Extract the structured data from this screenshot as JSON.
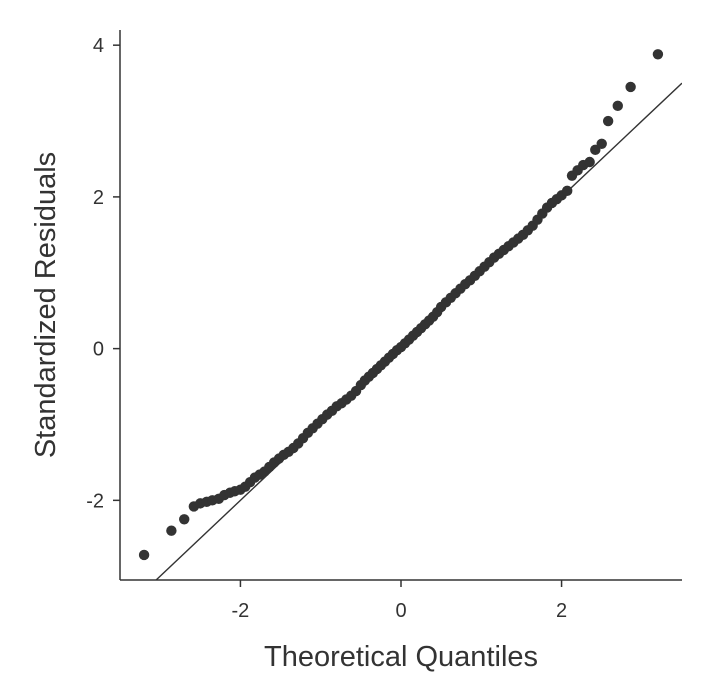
{
  "chart_data": {
    "type": "scatter",
    "title": "",
    "xlabel": "Theoretical Quantiles",
    "ylabel": "Standardized Residuals",
    "xlim": [
      -3.5,
      3.5
    ],
    "ylim": [
      -3.05,
      4.2
    ],
    "xticks": [
      -2,
      0,
      2
    ],
    "xtick_labels": [
      "-2",
      "0",
      "2"
    ],
    "yticks": [
      -2,
      0,
      2,
      4
    ],
    "ytick_labels": [
      "-2",
      "0",
      "2",
      "4"
    ],
    "grid": false,
    "legend": "none",
    "reference_line": {
      "slope": 1.0,
      "intercept": 0.0
    },
    "colors": {
      "points": "#333333",
      "line": "#333333",
      "axes": "#333333"
    },
    "series": [
      {
        "x": [
          -3.2,
          -2.86,
          -2.7,
          -2.58,
          -2.5,
          -2.42,
          -2.35,
          -2.27,
          -2.2,
          -2.13,
          -2.07,
          -2.0,
          -1.94,
          -1.88,
          -1.82,
          -1.76,
          -1.7,
          -1.64,
          -1.58,
          -1.52,
          -1.46,
          -1.4,
          -1.34,
          -1.28,
          -1.22,
          -1.16,
          -1.1,
          -1.04,
          -0.98,
          -0.92,
          -0.86,
          -0.8,
          -0.74,
          -0.68,
          -0.62,
          -0.56,
          -0.5,
          -0.45,
          -0.4,
          -0.35,
          -0.3,
          -0.25,
          -0.2,
          -0.15,
          -0.1,
          -0.05,
          0.0,
          0.05,
          0.1,
          0.15,
          0.2,
          0.25,
          0.3,
          0.35,
          0.4,
          0.45,
          0.5,
          0.56,
          0.62,
          0.68,
          0.74,
          0.8,
          0.86,
          0.92,
          0.98,
          1.04,
          1.1,
          1.16,
          1.22,
          1.28,
          1.34,
          1.4,
          1.46,
          1.52,
          1.58,
          1.64,
          1.7,
          1.76,
          1.82,
          1.88,
          1.94,
          2.0,
          2.07,
          2.13,
          2.2,
          2.27,
          2.35,
          2.42,
          2.5,
          2.58,
          2.7,
          2.86,
          3.2
        ],
        "y": [
          -2.72,
          -2.4,
          -2.25,
          -2.08,
          -2.04,
          -2.02,
          -2.0,
          -1.98,
          -1.93,
          -1.9,
          -1.88,
          -1.86,
          -1.82,
          -1.76,
          -1.7,
          -1.66,
          -1.62,
          -1.56,
          -1.5,
          -1.45,
          -1.4,
          -1.36,
          -1.31,
          -1.25,
          -1.18,
          -1.11,
          -1.05,
          -0.99,
          -0.93,
          -0.87,
          -0.82,
          -0.76,
          -0.72,
          -0.67,
          -0.62,
          -0.56,
          -0.48,
          -0.42,
          -0.37,
          -0.32,
          -0.27,
          -0.22,
          -0.17,
          -0.12,
          -0.07,
          -0.02,
          0.02,
          0.07,
          0.12,
          0.17,
          0.22,
          0.27,
          0.32,
          0.37,
          0.42,
          0.48,
          0.55,
          0.61,
          0.67,
          0.73,
          0.79,
          0.85,
          0.9,
          0.96,
          1.02,
          1.08,
          1.14,
          1.2,
          1.25,
          1.3,
          1.35,
          1.4,
          1.45,
          1.5,
          1.56,
          1.62,
          1.7,
          1.78,
          1.86,
          1.92,
          1.97,
          2.02,
          2.08,
          2.28,
          2.35,
          2.42,
          2.46,
          2.62,
          2.7,
          3.0,
          3.2,
          3.45,
          3.88
        ]
      }
    ]
  }
}
